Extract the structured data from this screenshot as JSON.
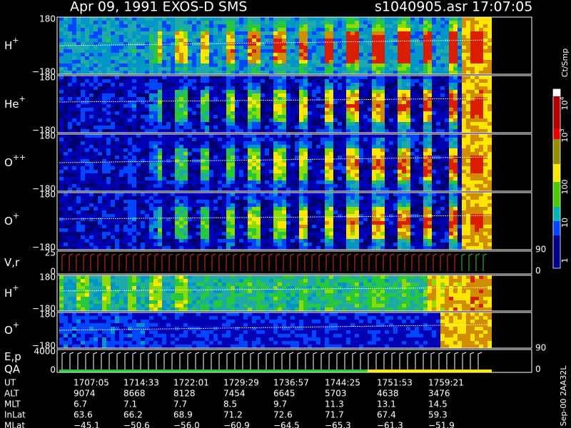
{
  "header": {
    "title": "Apr 09, 1991   EXOS-D SMS",
    "file_time": "s1040905.asr  17:07:05"
  },
  "panels": [
    {
      "label": "H",
      "sup": "+",
      "top": "180",
      "bottom": "−180"
    },
    {
      "label": "He",
      "sup": "+",
      "top": "180",
      "bottom": "−180"
    },
    {
      "label": "O",
      "sup": "++",
      "top": "180",
      "bottom": "−180"
    },
    {
      "label": "O",
      "sup": "+",
      "top": "180",
      "bottom": "−180"
    },
    {
      "label": "V,r",
      "top": "25",
      "bottom": "0",
      "right_top": "90",
      "right_bottom": "0"
    },
    {
      "label": "H",
      "sup": "+",
      "top": "180",
      "bottom": "−180"
    },
    {
      "label": "O",
      "sup": "+",
      "top": "180",
      "bottom": "−180"
    },
    {
      "label": "E,p",
      "label2": "QA",
      "top": "4000",
      "bottom": "0",
      "right_top": "90",
      "right_bottom": "0"
    }
  ],
  "colorbar": {
    "unit": "Ct/Smp",
    "labels": [
      {
        "base": "10",
        "exp": "4"
      },
      {
        "base": "10",
        "exp": "3"
      },
      {
        "base": "100"
      },
      {
        "base": "10"
      },
      {
        "base": "1"
      }
    ]
  },
  "table": {
    "rows": [
      [
        "UT",
        "1707:05",
        "1714:33",
        "1722:01",
        "1729:29",
        "1736:57",
        "1744:25",
        "1751:53",
        "1759:21"
      ],
      [
        "ALT",
        "9074",
        "8668",
        "8128",
        "7454",
        "6645",
        "5703",
        "4638",
        "3476"
      ],
      [
        "MLT",
        "6.7",
        "7.1",
        "7.7",
        "8.5",
        "9.7",
        "11.3",
        "13.1",
        "14.5"
      ],
      [
        "InLat",
        "63.6",
        "66.2",
        "68.9",
        "71.2",
        "72.6",
        "71.7",
        "67.4",
        "59.3"
      ],
      [
        "MLat",
        "−45.1",
        "−50.6",
        "−56.0",
        "−60.9",
        "−64.5",
        "−65.3",
        "−61.3",
        "−51.9"
      ]
    ]
  },
  "footer": "Sep-00 2AA32L"
}
